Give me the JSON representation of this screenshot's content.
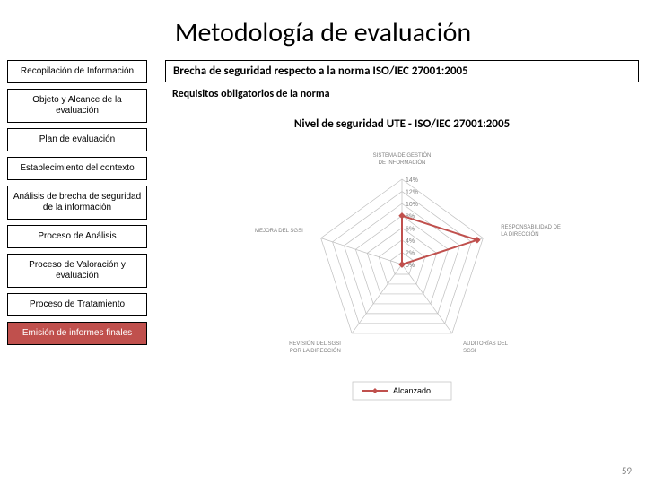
{
  "title": "Metodología de evaluación",
  "sidebar": {
    "items": [
      {
        "label": "Recopilación de Información",
        "active": false
      },
      {
        "label": "Objeto y Alcance de la evaluación",
        "active": false
      },
      {
        "label": "Plan de evaluación",
        "active": false
      },
      {
        "label": "Establecimiento del contexto",
        "active": false
      },
      {
        "label": "Análisis de brecha de seguridad de la información",
        "active": false
      },
      {
        "label": "Proceso de Análisis",
        "active": false
      },
      {
        "label": "Proceso de Valoración y evaluación",
        "active": false
      },
      {
        "label": "Proceso de Tratamiento",
        "active": false
      },
      {
        "label": "Emisión de informes finales",
        "active": true
      }
    ]
  },
  "content": {
    "header": "Brecha de seguridad respecto a la norma ISO/IEC 27001:2005",
    "subheader": "Requisitos obligatorios de la norma"
  },
  "chart": {
    "type": "radar",
    "title": "Nivel de seguridad UTE - ISO/IEC 27001:2005",
    "title_fontsize": 13,
    "title_color": "#000000",
    "axes": [
      "SISTEMA DE GESTIÓN DE INFORMACIÓN",
      "RESPONSABILIDAD DE LA DIRECCIÓN",
      "AUDITORÍAS DEL SGSI",
      "REVISIÓN DEL SGSI POR LA DIRECCIÓN",
      "MEJORA DEL SGSI"
    ],
    "axis_fontsize": 6,
    "axis_color": "#808080",
    "ticks": [
      0,
      2,
      4,
      6,
      8,
      10,
      12,
      14
    ],
    "tick_labels": [
      "0%",
      "2%",
      "4%",
      "6%",
      "8%",
      "10%",
      "12%",
      "14%"
    ],
    "tick_fontsize": 7,
    "tick_color": "#808080",
    "max_value": 14,
    "grid_color": "#bfbfbf",
    "series": {
      "name": "Alcanzado",
      "values": [
        8,
        13,
        0,
        0,
        0
      ],
      "line_color": "#c0504d",
      "line_width": 2,
      "marker": "diamond",
      "marker_size": 6,
      "marker_color": "#c0504d"
    },
    "legend": {
      "position": "bottom",
      "fontsize": 9,
      "marker_color": "#c0504d",
      "label": "Alcanzado"
    },
    "background_color": "#ffffff"
  },
  "slide_number": "59",
  "colors": {
    "active_step_bg": "#c0504d",
    "active_step_fg": "#ffffff"
  }
}
